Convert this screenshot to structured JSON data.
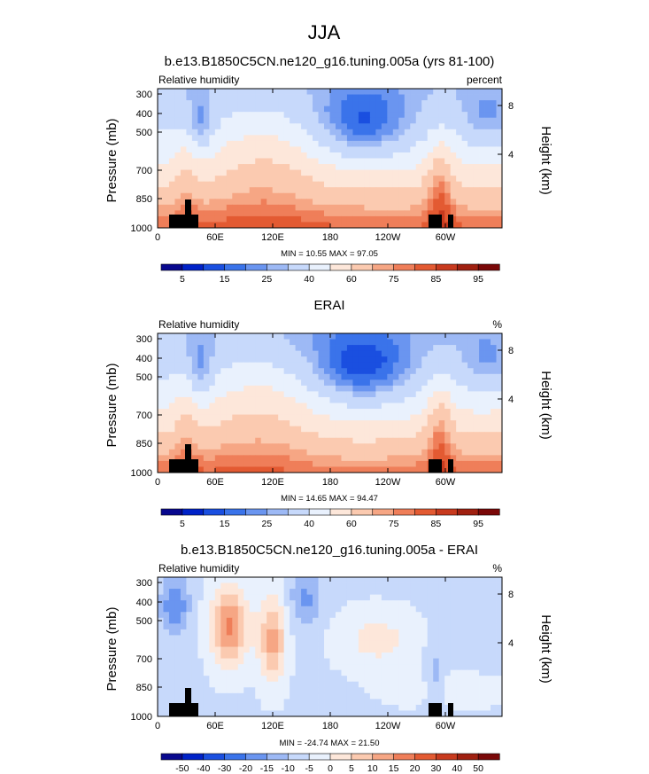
{
  "figure": {
    "title": "JJA"
  },
  "colors": {
    "rh_levels": [
      "#08088e",
      "#0022c8",
      "#1a4fe0",
      "#3a73ea",
      "#6a95f0",
      "#9db9f5",
      "#c7d9fb",
      "#e9f1fd",
      "#fde7da",
      "#fbcab0",
      "#f6a684",
      "#ef7e59",
      "#e35a32",
      "#c83a1e",
      "#a02010",
      "#7a0808"
    ],
    "diff_levels": [
      "#08088e",
      "#0022c8",
      "#1a4fe0",
      "#3a73ea",
      "#6a95f0",
      "#9db9f5",
      "#c7d9fb",
      "#e9f1fd",
      "#fde7da",
      "#fbcab0",
      "#f6a684",
      "#ef7e59",
      "#e35a32",
      "#c83a1e",
      "#a02010",
      "#7a0808"
    ]
  },
  "chart_data": [
    {
      "type": "heatmap",
      "title": "b.e13.B1850C5CN.ne120_g16.tuning.005a (yrs 81-100)",
      "left_label": "Relative humidity",
      "right_label": "percent",
      "ylabel": "Pressure (mb)",
      "y2label": "Height (km)",
      "x_ticks": [
        "0",
        "60E",
        "120E",
        "180",
        "120W",
        "60W"
      ],
      "y_ticks": [
        "300",
        "400",
        "500",
        "700",
        "850",
        "1000"
      ],
      "y2_ticks": [
        "8",
        "4"
      ],
      "min_max": "MIN =  10.55   MAX =  97.05",
      "colorbar_labels": [
        "5",
        "15",
        "25",
        "40",
        "60",
        "75",
        "85",
        "95"
      ]
    },
    {
      "type": "heatmap",
      "title": "ERAI",
      "left_label": "Relative humidity",
      "right_label": "%",
      "ylabel": "Pressure (mb)",
      "y2label": "Height (km)",
      "x_ticks": [
        "0",
        "60E",
        "120E",
        "180",
        "120W",
        "60W"
      ],
      "y_ticks": [
        "300",
        "400",
        "500",
        "700",
        "850",
        "1000"
      ],
      "y2_ticks": [
        "8",
        "4"
      ],
      "min_max": "MIN =  14.65   MAX =  94.47",
      "colorbar_labels": [
        "5",
        "15",
        "25",
        "40",
        "60",
        "75",
        "85",
        "95"
      ]
    },
    {
      "type": "heatmap",
      "title": "b.e13.B1850C5CN.ne120_g16.tuning.005a - ERAI",
      "left_label": "Relative humidity",
      "right_label": "%",
      "ylabel": "Pressure (mb)",
      "y2label": "Height (km)",
      "x_ticks": [
        "0",
        "60E",
        "120E",
        "180",
        "120W",
        "60W"
      ],
      "y_ticks": [
        "300",
        "400",
        "500",
        "700",
        "850",
        "1000"
      ],
      "y2_ticks": [
        "8",
        "4"
      ],
      "min_max": "MIN = -24.74   MAX =  21.50",
      "colorbar_labels": [
        "-50",
        "-40",
        "-30",
        "-20",
        "-15",
        "-10",
        "-5",
        "0",
        "5",
        "10",
        "15",
        "20",
        "30",
        "40",
        "50"
      ]
    }
  ]
}
